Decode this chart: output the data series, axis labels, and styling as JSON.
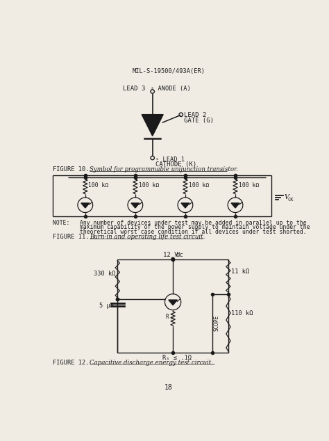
{
  "bg_color": "#f0ece4",
  "text_color": "#1a1a1a",
  "header": "MIL-S-19500/493A(ER)",
  "figure10_caption_a": "FIGURE 10.  ",
  "figure10_caption_b": "Symbol for programmable unijunction transistor.",
  "figure11_caption_a": "FIGURE 11.  ",
  "figure11_caption_b": "Burn-in and operating life test circuit.",
  "figure12_caption_a": "FIGURE 12.  ",
  "figure12_caption_b": "Capacitive discharge energy test circuit.",
  "note_line1": "NOTE:   Any number of devices under test may be added in parallel up to the",
  "note_line2": "        maximum capability of the power supply to maintain voltage under the",
  "note_line3": "        theoretical worst case condition if all devices under test shorted.",
  "page_number": "18",
  "res_label": "100 kΩ",
  "res_330": "330 kΩ",
  "res_11": "11 kΩ",
  "res_110": "110 kΩ",
  "cap_label": "5 μF",
  "vdc_label": "12 V dc",
  "scope_label": "SCOPE",
  "rs_label": "Rₛ ≤ .1Ω",
  "vck_label": "V",
  "vck_sub": "CK"
}
